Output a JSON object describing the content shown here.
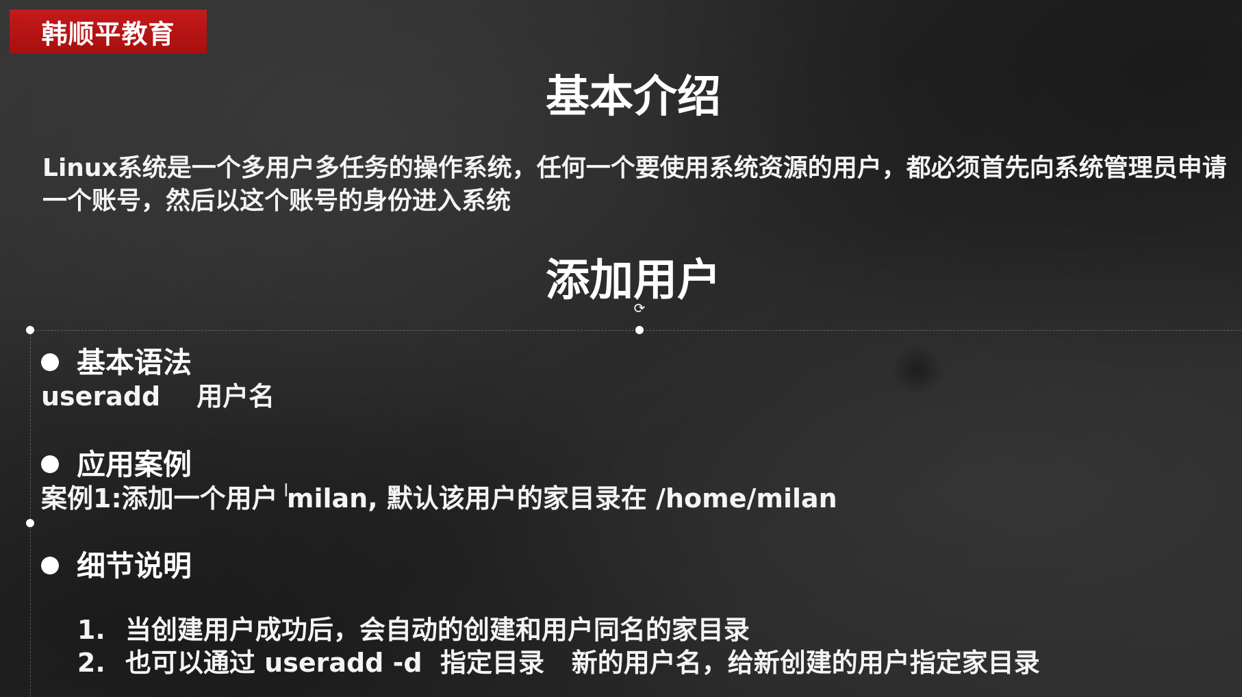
{
  "brand": {
    "label": "韩顺平教育",
    "color": "#b81414"
  },
  "heading1": "基本介绍",
  "intro": "Linux系统是一个多用户多任务的操作系统，任何一个要使用系统资源的用户，都必须首先向系统管理员申请一个账号，然后以这个账号的身份进入系统",
  "heading2": "添加用户",
  "sections": {
    "syntax": {
      "title": "基本语法",
      "line": "useradd    用户名"
    },
    "example": {
      "title": "应用案例",
      "line": "案例1:添加一个用户 milan, 默认该用户的家目录在 /home/milan"
    },
    "details": {
      "title": "细节说明",
      "items": [
        {
          "num": "1.",
          "text": "当创建用户成功后，会自动的创建和用户同名的家目录"
        },
        {
          "num": "2.",
          "text": "也可以通过 useradd -d  指定目录   新的用户名，给新创建的用户指定家目录"
        }
      ]
    }
  }
}
